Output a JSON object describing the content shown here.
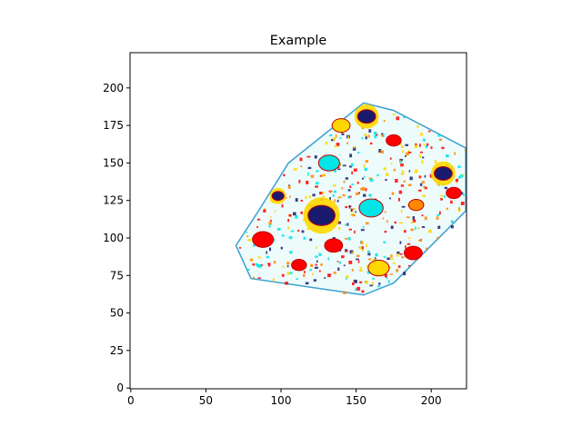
{
  "chart_data": {
    "type": "image",
    "title": "Example",
    "xlabel": "",
    "ylabel": "",
    "xlim": [
      -0.5,
      223.5
    ],
    "ylim": [
      223.5,
      -0.5
    ],
    "y_inverted": true,
    "grid": false,
    "x_ticks": [
      0,
      50,
      100,
      150,
      200
    ],
    "x_tick_labels": [
      "0",
      "50",
      "100",
      "150",
      "200"
    ],
    "y_ticks": [
      0,
      25,
      50,
      75,
      100,
      125,
      150,
      175,
      200
    ],
    "y_tick_labels": [
      "0",
      "25",
      "50",
      "75",
      "100",
      "125",
      "150",
      "175",
      "200"
    ],
    "image": {
      "description_colors": [
        "#ff0000",
        "#ffd700",
        "#00e5e5",
        "#1a1a6e",
        "#ffffff",
        "#ff8800"
      ],
      "object_outline": [
        [
          70,
          95
        ],
        [
          80,
          73
        ],
        [
          155,
          62
        ],
        [
          175,
          70
        ],
        [
          223,
          118
        ],
        [
          223,
          160
        ],
        [
          175,
          185
        ],
        [
          155,
          190
        ],
        [
          105,
          150
        ],
        [
          85,
          118
        ]
      ],
      "blobs": [
        {
          "x": 127,
          "y": 115,
          "r": 9,
          "color": "#1a1a6e"
        },
        {
          "x": 208,
          "y": 143,
          "r": 6,
          "color": "#1a1a6e"
        },
        {
          "x": 157,
          "y": 181,
          "r": 6,
          "color": "#1a1a6e"
        },
        {
          "x": 88,
          "y": 99,
          "r": 7,
          "color": "#ff0000"
        },
        {
          "x": 135,
          "y": 95,
          "r": 6,
          "color": "#ff0000"
        },
        {
          "x": 160,
          "y": 120,
          "r": 8,
          "color": "#00e5e5"
        },
        {
          "x": 132,
          "y": 150,
          "r": 7,
          "color": "#00e5e5"
        },
        {
          "x": 165,
          "y": 80,
          "r": 7,
          "color": "#ffd700"
        },
        {
          "x": 188,
          "y": 90,
          "r": 6,
          "color": "#ff0000"
        },
        {
          "x": 112,
          "y": 82,
          "r": 5,
          "color": "#ff0000"
        },
        {
          "x": 190,
          "y": 122,
          "r": 5,
          "color": "#ff8800"
        },
        {
          "x": 215,
          "y": 130,
          "r": 5,
          "color": "#ff0000"
        },
        {
          "x": 140,
          "y": 175,
          "r": 6,
          "color": "#ffd700"
        },
        {
          "x": 175,
          "y": 165,
          "r": 5,
          "color": "#ff0000"
        },
        {
          "x": 98,
          "y": 128,
          "r": 4,
          "color": "#1a1a6e"
        }
      ]
    }
  }
}
